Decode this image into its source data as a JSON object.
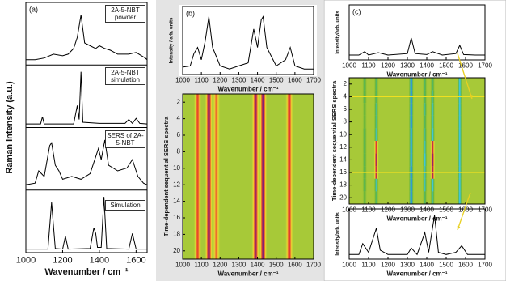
{
  "chart_data": [
    {
      "type": "line",
      "panel": "(a)",
      "ylabel": "Raman Intensity (a.u.)",
      "xlabel": "Wavenumber / cm⁻¹",
      "xlim": [
        1000,
        1660
      ],
      "xticks": [
        1000,
        1200,
        1400,
        1600
      ],
      "ylim": [
        0,
        1
      ],
      "series": [
        {
          "name": "2A-5-NBT powder",
          "color": "#000000",
          "x": [
            1000,
            1050,
            1100,
            1150,
            1200,
            1230,
            1260,
            1280,
            1300,
            1320,
            1350,
            1380,
            1400,
            1430,
            1460,
            1500,
            1560,
            1600,
            1650,
            1660
          ],
          "values": [
            0.05,
            0.05,
            0.08,
            0.15,
            0.12,
            0.15,
            0.25,
            0.45,
            0.85,
            0.35,
            0.3,
            0.25,
            0.3,
            0.25,
            0.22,
            0.15,
            0.15,
            0.18,
            0.08,
            0.05
          ]
        },
        {
          "name": "2A-5-NBT simulation",
          "color": "#000000",
          "x": [
            1000,
            1080,
            1090,
            1100,
            1260,
            1280,
            1290,
            1300,
            1310,
            1400,
            1540,
            1560,
            1580,
            1600,
            1620,
            1660
          ],
          "values": [
            0.02,
            0.02,
            0.15,
            0.02,
            0.02,
            0.35,
            0.1,
            0.95,
            0.05,
            0.03,
            0.03,
            0.1,
            0.03,
            0.12,
            0.03,
            0.02
          ]
        },
        {
          "name": "SERS of 2A-5-NBT",
          "color": "#000000",
          "x": [
            1000,
            1050,
            1070,
            1100,
            1130,
            1140,
            1160,
            1180,
            1200,
            1250,
            1300,
            1350,
            1380,
            1395,
            1410,
            1430,
            1450,
            1500,
            1550,
            1580,
            1610,
            1640,
            1660
          ],
          "values": [
            0.05,
            0.08,
            0.3,
            0.2,
            0.75,
            0.8,
            0.4,
            0.3,
            0.15,
            0.2,
            0.15,
            0.25,
            0.55,
            0.7,
            0.5,
            0.85,
            0.4,
            0.3,
            0.35,
            0.5,
            0.2,
            0.08,
            0.05
          ]
        },
        {
          "name": "Simulation",
          "color": "#000000",
          "x": [
            1000,
            1120,
            1140,
            1160,
            1200,
            1215,
            1230,
            1350,
            1370,
            1380,
            1390,
            1410,
            1425,
            1440,
            1560,
            1580,
            1600,
            1660
          ],
          "values": [
            0.02,
            0.02,
            0.85,
            0.03,
            0.02,
            0.25,
            0.02,
            0.03,
            0.4,
            0.3,
            0.05,
            0.05,
            0.95,
            0.03,
            0.02,
            0.3,
            0.02,
            0.02
          ]
        }
      ]
    },
    {
      "type": "line",
      "panel": "(b)",
      "ylabel": "Intensity / arb. units",
      "xlabel": "Wavenumber / cm⁻¹",
      "xlim": [
        1000,
        1700
      ],
      "xticks": [
        1000,
        1100,
        1200,
        1300,
        1400,
        1500,
        1600,
        1700
      ],
      "ylim": [
        0,
        1
      ],
      "series": [
        {
          "color": "#000000",
          "x": [
            1000,
            1040,
            1060,
            1080,
            1100,
            1120,
            1140,
            1160,
            1180,
            1200,
            1250,
            1300,
            1350,
            1380,
            1400,
            1420,
            1430,
            1450,
            1500,
            1550,
            1575,
            1600,
            1650,
            1700
          ],
          "values": [
            0.08,
            0.1,
            0.3,
            0.4,
            0.2,
            0.5,
            0.9,
            0.4,
            0.25,
            0.1,
            0.05,
            0.1,
            0.15,
            0.7,
            0.4,
            0.85,
            0.9,
            0.4,
            0.1,
            0.2,
            0.4,
            0.1,
            0.05,
            0.05
          ]
        }
      ]
    },
    {
      "type": "heatmap",
      "ylabel": "Time-dependent sequential SERS spectra",
      "xlabel": "Wavenumber / cm⁻¹",
      "xlim": [
        1000,
        1700
      ],
      "xticks": [
        1000,
        1100,
        1200,
        1300,
        1400,
        1500,
        1600,
        1700
      ],
      "ylim": [
        21,
        1
      ],
      "yticks": [
        2,
        4,
        6,
        8,
        10,
        12,
        14,
        16,
        18,
        20
      ],
      "x": [
        1080,
        1140,
        1180,
        1390,
        1430,
        1570
      ],
      "values": [
        0.6,
        1,
        0.5,
        0.9,
        1,
        0.7
      ],
      "colorscale": [
        "#1a3fd0",
        "#3ec8e8",
        "#5cb23c",
        "#f2e033",
        "#e8402a",
        "#7a1f7a"
      ],
      "zlim": [
        -1,
        1
      ]
    },
    {
      "type": "line",
      "panel": "(c)",
      "ylabel": "Intensity/arb. units",
      "xlabel": "Wavenumber / cm⁻¹",
      "xlim": [
        1000,
        1700
      ],
      "xticks": [
        1000,
        1100,
        1200,
        1300,
        1400,
        1500,
        1600,
        1700
      ],
      "ylim": [
        0,
        1
      ],
      "series": [
        {
          "color": "#000000",
          "x": [
            1000,
            1050,
            1080,
            1100,
            1150,
            1200,
            1300,
            1320,
            1340,
            1400,
            1430,
            1480,
            1550,
            1570,
            1590,
            1650,
            1700
          ],
          "values": [
            0.05,
            0.05,
            0.12,
            0.05,
            0.1,
            0.05,
            0.08,
            0.4,
            0.08,
            0.06,
            0.12,
            0.05,
            0.08,
            0.25,
            0.06,
            0.05,
            0.05
          ]
        }
      ]
    },
    {
      "type": "heatmap",
      "ylabel": "Time-dependent sequential SERS spectra",
      "xlabel": "Wavenumber / cm⁻¹",
      "xlim": [
        1000,
        1700
      ],
      "xticks": [
        1000,
        1100,
        1200,
        1300,
        1400,
        1500,
        1600,
        1700
      ],
      "ylim": [
        21,
        1
      ],
      "yticks": [
        2,
        4,
        6,
        8,
        10,
        12,
        14,
        16,
        18,
        20
      ],
      "x": [
        1080,
        1140,
        1320,
        1390,
        1430,
        1570
      ],
      "y": [
        2,
        4,
        6,
        8,
        10,
        12,
        14,
        16,
        18,
        20
      ],
      "z": [
        [
          -0.3,
          -0.3,
          -0.9,
          -0.3,
          -0.3,
          -0.6
        ],
        [
          -0.3,
          -0.3,
          -0.9,
          -0.3,
          -0.4,
          -0.6
        ],
        [
          -0.2,
          -0.4,
          -0.9,
          -0.4,
          -0.5,
          -0.6
        ],
        [
          -0.2,
          -0.4,
          -0.9,
          -0.3,
          -0.5,
          -0.6
        ],
        [
          -0.3,
          -0.5,
          -0.8,
          -0.4,
          -0.6,
          -0.6
        ],
        [
          -0.3,
          0.7,
          -0.8,
          -0.5,
          0.8,
          -0.6
        ],
        [
          -0.3,
          0.9,
          -0.8,
          -0.6,
          1,
          -0.6
        ],
        [
          -0.3,
          0.8,
          -0.9,
          -0.5,
          0.9,
          -0.6
        ],
        [
          -0.3,
          -0.5,
          -0.9,
          -0.5,
          -0.6,
          -0.6
        ],
        [
          -0.2,
          -0.3,
          -0.9,
          -0.3,
          -0.4,
          -0.6
        ]
      ],
      "hlines": [
        4,
        16
      ],
      "hline_color": "#f0e020",
      "colorscale": [
        "#1a3fd0",
        "#3ec8e8",
        "#5cb23c",
        "#f2e033",
        "#e8402a",
        "#7a1f7a"
      ],
      "zlim": [
        -1,
        1
      ]
    },
    {
      "type": "line",
      "ylabel": "Intensity/arb. units",
      "xlabel": "Wavenumber / cm⁻¹",
      "xlim": [
        1000,
        1700
      ],
      "xticks": [
        1000,
        1100,
        1200,
        1300,
        1400,
        1500,
        1600,
        1700
      ],
      "ylim": [
        0,
        1
      ],
      "series": [
        {
          "color": "#000000",
          "x": [
            1000,
            1050,
            1070,
            1100,
            1140,
            1160,
            1200,
            1300,
            1320,
            1350,
            1390,
            1410,
            1440,
            1460,
            1500,
            1550,
            1580,
            1610,
            1700
          ],
          "values": [
            0.05,
            0.05,
            0.3,
            0.1,
            0.65,
            0.15,
            0.05,
            0.05,
            0.2,
            0.05,
            0.55,
            0.1,
            0.95,
            0.1,
            0.05,
            0.1,
            0.25,
            0.05,
            0.05
          ]
        }
      ]
    }
  ]
}
